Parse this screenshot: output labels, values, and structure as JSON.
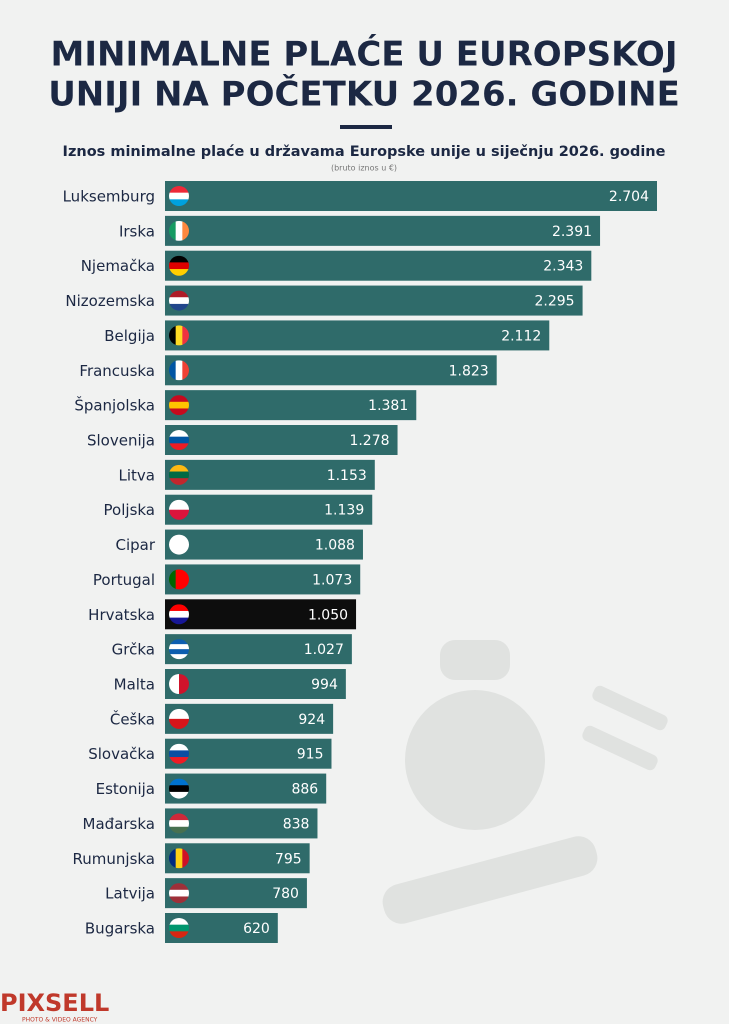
{
  "chart_data": {
    "type": "bar",
    "title": [
      "MINIMALNE PLAĆE U EUROPSKOJ",
      "UNIJI NA POČETKU 2026. GODINE"
    ],
    "subtitle": "Iznos minimalne plaće u državama Europske unije u siječnju 2026. godine",
    "note": "(bruto iznos u €)",
    "categories": [
      "Luksemburg",
      "Irska",
      "Njemačka",
      "Nizozemska",
      "Belgija",
      "Francuska",
      "Španjolska",
      "Slovenija",
      "Litva",
      "Poljska",
      "Cipar",
      "Portugal",
      "Hrvatska",
      "Grčka",
      "Malta",
      "Češka",
      "Slovačka",
      "Estonija",
      "Mađarska",
      "Rumunjska",
      "Latvija",
      "Bugarska"
    ],
    "values": [
      2704,
      2391,
      2343,
      2295,
      2112,
      1823,
      1381,
      1278,
      1153,
      1139,
      1088,
      1073,
      1050,
      1027,
      994,
      924,
      915,
      886,
      838,
      795,
      780,
      620
    ],
    "value_labels": [
      "2.704",
      "2.391",
      "2.343",
      "2.295",
      "2.112",
      "1.823",
      "1.381",
      "1.278",
      "1.153",
      "1.139",
      "1.088",
      "1.073",
      "1.050",
      "1.027",
      "994",
      "924",
      "915",
      "886",
      "838",
      "795",
      "780",
      "620"
    ],
    "colors": [
      "#2f6b6a",
      "#2f6b6a",
      "#2f6b6a",
      "#2f6b6a",
      "#2f6b6a",
      "#2f6b6a",
      "#2f6b6a",
      "#2f6b6a",
      "#2f6b6a",
      "#2f6b6a",
      "#2f6b6a",
      "#2f6b6a",
      "#0d0d0d",
      "#2f6b6a",
      "#2f6b6a",
      "#2f6b6a",
      "#2f6b6a",
      "#2f6b6a",
      "#2f6b6a",
      "#2f6b6a",
      "#2f6b6a",
      "#2f6b6a"
    ],
    "logo": "PIXSELL",
    "logo_tagline": "PHOTO & VIDEO AGENCY"
  }
}
